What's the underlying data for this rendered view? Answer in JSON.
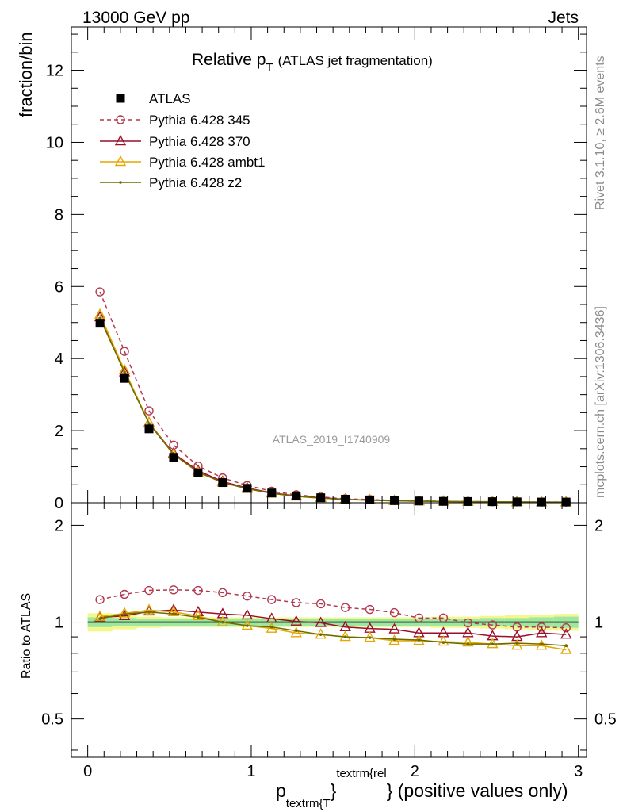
{
  "header": {
    "left": "13000 GeV pp",
    "right": "Jets"
  },
  "side_labels": {
    "rivet": "Rivet 3.1.10, ≥ 2.6M events",
    "mcplots": "mcplots.cern.ch [arXiv:1306.3436]"
  },
  "watermark": "ATLAS_2019_I1740909",
  "title": {
    "main": "Relative p",
    "sub": "T",
    "paren": "(ATLAS jet fragmentation)"
  },
  "ylabel_main": "fraction/bin",
  "ylabel_ratio": "Ratio to ATLAS",
  "xlabel": {
    "p": "p",
    "sub1": "textrm{T",
    "sup": "textrm{rel",
    "close": "}",
    "rest": "} (positive values only)"
  },
  "chart_data": [
    {
      "type": "line",
      "panel": "main",
      "x": [
        0.075,
        0.225,
        0.375,
        0.525,
        0.675,
        0.825,
        0.975,
        1.125,
        1.275,
        1.425,
        1.575,
        1.725,
        1.875,
        2.025,
        2.175,
        2.325,
        2.475,
        2.625,
        2.775,
        2.925
      ],
      "xlim": [
        -0.1,
        3.05
      ],
      "ylim": [
        0,
        13.2
      ],
      "yticks": [
        0,
        2,
        4,
        6,
        8,
        10,
        12
      ],
      "ylabel": "fraction/bin",
      "legend_position": "top-left",
      "series": [
        {
          "name": "ATLAS",
          "marker": "square",
          "color": "#000000",
          "values": [
            4.98,
            3.45,
            2.05,
            1.26,
            0.83,
            0.56,
            0.4,
            0.27,
            0.19,
            0.14,
            0.1,
            0.08,
            0.06,
            0.05,
            0.04,
            0.035,
            0.03,
            0.025,
            0.02,
            0.02
          ]
        },
        {
          "name": "Pythia 6.428 345",
          "marker": "circle",
          "color": "#b2394f",
          "dash": "dashed",
          "values": [
            5.85,
            4.2,
            2.55,
            1.6,
            1.02,
            0.69,
            0.48,
            0.32,
            0.22,
            0.16,
            0.11,
            0.088,
            0.065,
            0.052,
            0.042,
            0.035,
            0.029,
            0.024,
            0.019,
            0.019
          ]
        },
        {
          "name": "Pythia 6.428 370",
          "marker": "triangle",
          "color": "#9b0e28",
          "values": [
            5.15,
            3.62,
            2.22,
            1.37,
            0.89,
            0.59,
            0.41,
            0.275,
            0.19,
            0.14,
            0.095,
            0.075,
            0.056,
            0.045,
            0.036,
            0.031,
            0.027,
            0.022,
            0.018,
            0.018
          ]
        },
        {
          "name": "Pythia 6.428 ambt1",
          "marker": "triangle",
          "color": "#e3a700",
          "values": [
            5.22,
            3.68,
            2.22,
            1.34,
            0.85,
            0.56,
            0.39,
            0.26,
            0.175,
            0.13,
            0.09,
            0.072,
            0.053,
            0.043,
            0.035,
            0.03,
            0.026,
            0.021,
            0.017,
            0.017
          ]
        },
        {
          "name": "Pythia 6.428 z2",
          "marker": "dot",
          "color": "#6b6b00",
          "values": [
            5.12,
            3.62,
            2.2,
            1.34,
            0.85,
            0.56,
            0.39,
            0.265,
            0.18,
            0.13,
            0.09,
            0.072,
            0.053,
            0.043,
            0.035,
            0.03,
            0.026,
            0.021,
            0.017,
            0.017
          ]
        }
      ]
    },
    {
      "type": "line",
      "panel": "ratio",
      "x": [
        0.075,
        0.225,
        0.375,
        0.525,
        0.675,
        0.825,
        0.975,
        1.125,
        1.275,
        1.425,
        1.575,
        1.725,
        1.875,
        2.025,
        2.175,
        2.325,
        2.475,
        2.625,
        2.775,
        2.925
      ],
      "xlim": [
        -0.1,
        3.05
      ],
      "ylim": [
        0.38,
        2.35
      ],
      "log_y": true,
      "yticks": [
        0.5,
        1,
        2
      ],
      "xticks": [
        0,
        1,
        2,
        3
      ],
      "ylabel": "Ratio to ATLAS",
      "band": {
        "inner": [
          0.035,
          0.03,
          0.025,
          0.025,
          0.025,
          0.025,
          0.025,
          0.025,
          0.025,
          0.025,
          0.025,
          0.025,
          0.025,
          0.025,
          0.025,
          0.025,
          0.03,
          0.03,
          0.035,
          0.04
        ],
        "outer": [
          0.065,
          0.05,
          0.04,
          0.035,
          0.035,
          0.035,
          0.035,
          0.035,
          0.035,
          0.035,
          0.035,
          0.035,
          0.035,
          0.035,
          0.04,
          0.04,
          0.045,
          0.05,
          0.055,
          0.06
        ]
      },
      "series": [
        {
          "name": "Pythia 6.428 345",
          "color": "#b2394f",
          "marker": "circle",
          "dash": "dashed",
          "values": [
            1.175,
            1.22,
            1.255,
            1.26,
            1.255,
            1.235,
            1.205,
            1.175,
            1.15,
            1.14,
            1.11,
            1.095,
            1.07,
            1.03,
            1.03,
            0.995,
            0.98,
            0.965,
            0.965,
            0.96
          ]
        },
        {
          "name": "Pythia 6.428 370",
          "color": "#9b0e28",
          "marker": "triangle",
          "values": [
            1.035,
            1.045,
            1.08,
            1.09,
            1.075,
            1.06,
            1.05,
            1.025,
            1.005,
            0.995,
            0.965,
            0.955,
            0.95,
            0.925,
            0.925,
            0.925,
            0.905,
            0.9,
            0.925,
            0.915
          ]
        },
        {
          "name": "Pythia 6.428 ambt1",
          "color": "#e3a700",
          "marker": "triangle",
          "values": [
            1.04,
            1.065,
            1.09,
            1.075,
            1.045,
            1.0,
            0.975,
            0.955,
            0.925,
            0.915,
            0.9,
            0.895,
            0.875,
            0.875,
            0.87,
            0.865,
            0.855,
            0.845,
            0.845,
            0.82
          ]
        },
        {
          "name": "Pythia 6.428 z2",
          "color": "#6b6b00",
          "marker": "dot",
          "values": [
            1.025,
            1.06,
            1.075,
            1.06,
            1.035,
            1.0,
            0.975,
            0.965,
            0.94,
            0.915,
            0.9,
            0.895,
            0.885,
            0.88,
            0.865,
            0.855,
            0.855,
            0.86,
            0.855,
            0.845
          ]
        }
      ]
    }
  ]
}
